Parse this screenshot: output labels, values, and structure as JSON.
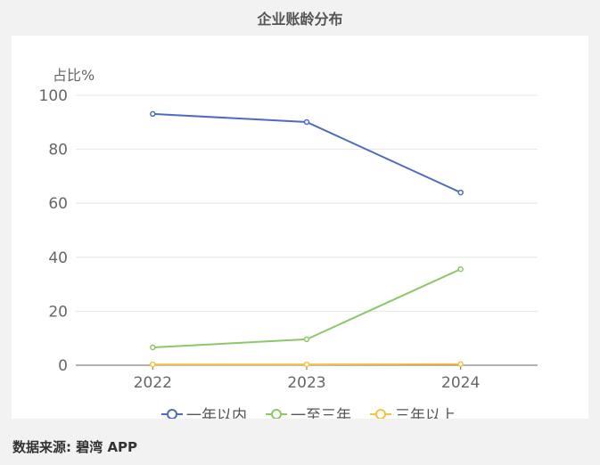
{
  "chart_data": {
    "type": "line",
    "title": "企业账龄分布",
    "ylabel": "占比%",
    "xlabel": "",
    "categories": [
      "2022",
      "2023",
      "2024"
    ],
    "ylim": [
      0,
      100
    ],
    "yticks": [
      0,
      20,
      40,
      60,
      80,
      100
    ],
    "grid": true,
    "legend_position": "bottom",
    "series": [
      {
        "name": "一年以内",
        "color": "#4f6bbf",
        "values": [
          93.1,
          90.1,
          64.0
        ]
      },
      {
        "name": "一至三年",
        "color": "#8cc86a",
        "values": [
          6.6,
          9.6,
          35.6
        ]
      },
      {
        "name": "三年以上",
        "color": "#f5c342",
        "values": [
          0.3,
          0.3,
          0.4
        ]
      }
    ]
  },
  "footer": {
    "source": "数据来源: 碧湾 APP"
  }
}
